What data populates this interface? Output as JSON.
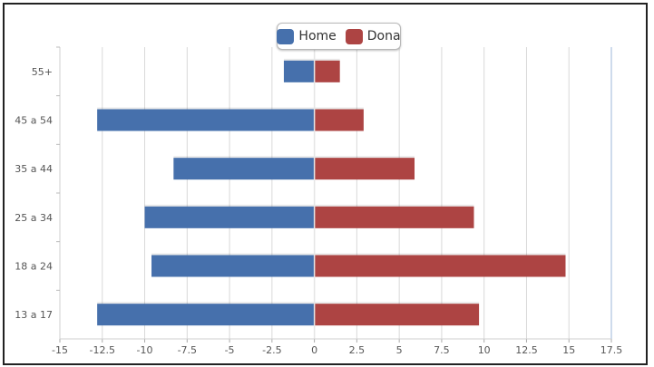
{
  "colors": {
    "home": "#4670ac",
    "dona": "#ad4443",
    "grid": "#d9d9d9",
    "axis": "#9eb7d9"
  },
  "chart_data": {
    "type": "bar",
    "orientation": "horizontal",
    "categories": [
      "55+",
      "45 a 54",
      "35 a 44",
      "25 a 34",
      "18 a 24",
      "13 a 17"
    ],
    "series": [
      {
        "name": "Home",
        "values": [
          -1.8,
          -12.8,
          -8.3,
          -10.0,
          -9.6,
          -12.8
        ]
      },
      {
        "name": "Dona",
        "values": [
          1.5,
          2.9,
          5.9,
          9.4,
          14.8,
          9.7
        ]
      }
    ],
    "x_ticks": [
      "-15",
      "-12.5",
      "-10",
      "-7.5",
      "-5",
      "-2.5",
      "0",
      "2.5",
      "5",
      "7.5",
      "10",
      "12.5",
      "15",
      "17.5"
    ],
    "xlim": [
      -15,
      17.5
    ],
    "grid": true,
    "legend_position": "top-center",
    "title": "",
    "xlabel": "",
    "ylabel": ""
  }
}
